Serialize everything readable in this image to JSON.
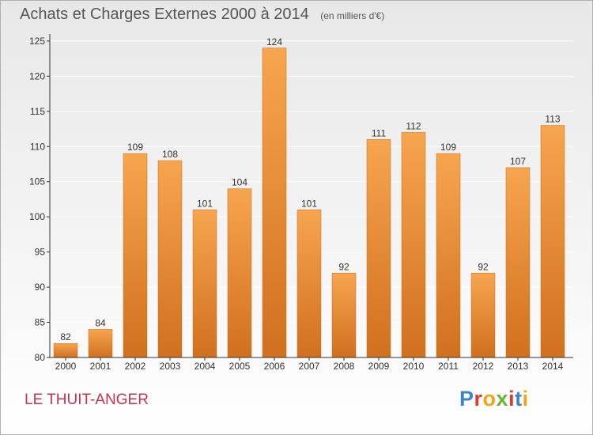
{
  "header": {
    "title": "Achats et Charges Externes 2000 à 2014",
    "unit": "(en milliers d'€)"
  },
  "footer": {
    "town": "LE THUIT-ANGER",
    "logo": "Proxiti",
    "logo_colors": [
      "#3a86c8",
      "#e2382f",
      "#f2a31a",
      "#6bb431",
      "#e2382f",
      "#3a86c8",
      "#f2a31a"
    ]
  },
  "colors": {
    "bar_top": "#f7a54f",
    "bar_bottom": "#d0701f",
    "axis": "#333333",
    "grid": "#ffffff",
    "label": "#333333"
  },
  "chart_data": {
    "type": "bar",
    "title": "Achats et Charges Externes 2000 à 2014",
    "subtitle": "(en milliers d'€)",
    "xlabel": "",
    "ylabel": "",
    "categories": [
      "2000",
      "2001",
      "2002",
      "2003",
      "2004",
      "2005",
      "2006",
      "2007",
      "2008",
      "2009",
      "2010",
      "2011",
      "2012",
      "2013",
      "2014"
    ],
    "values": [
      82,
      84,
      109,
      108,
      101,
      104,
      124,
      101,
      92,
      111,
      112,
      109,
      92,
      107,
      113
    ],
    "ylim": [
      80,
      126
    ],
    "yticks": [
      80,
      85,
      90,
      95,
      100,
      105,
      110,
      115,
      120,
      125
    ],
    "grid": true,
    "data_labels": true
  }
}
